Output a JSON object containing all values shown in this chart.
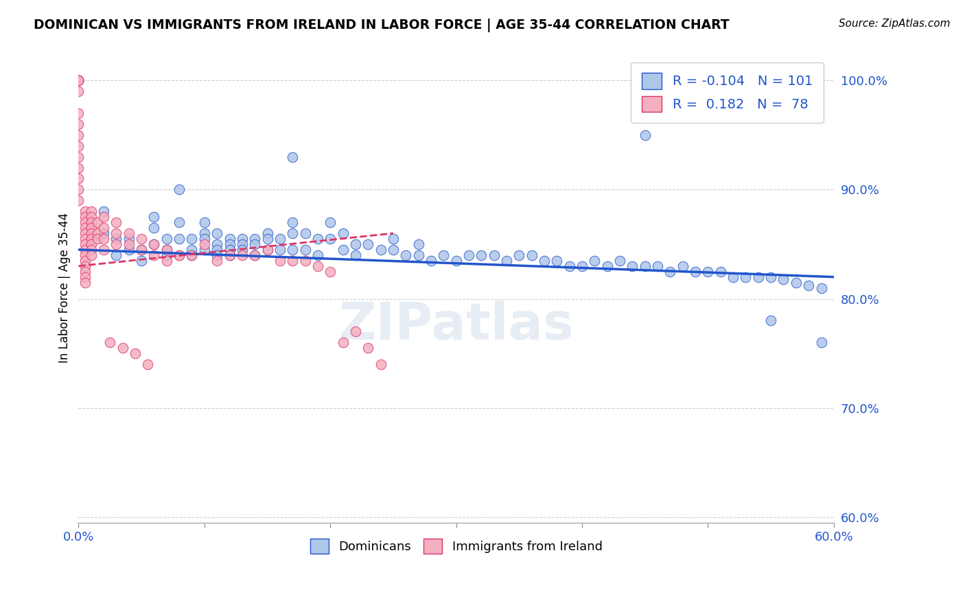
{
  "title": "DOMINICAN VS IMMIGRANTS FROM IRELAND IN LABOR FORCE | AGE 35-44 CORRELATION CHART",
  "source": "Source: ZipAtlas.com",
  "ylabel": "In Labor Force | Age 35-44",
  "xlim": [
    0.0,
    0.6
  ],
  "ylim": [
    0.595,
    1.025
  ],
  "yticks": [
    0.6,
    0.7,
    0.8,
    0.9,
    1.0
  ],
  "ytick_labels": [
    "60.0%",
    "70.0%",
    "80.0%",
    "90.0%",
    "100.0%"
  ],
  "xticks": [
    0.0,
    0.1,
    0.2,
    0.3,
    0.4,
    0.5,
    0.6
  ],
  "xtick_labels": [
    "0.0%",
    "",
    "",
    "",
    "",
    "",
    "60.0%"
  ],
  "blue_R": -0.104,
  "blue_N": 101,
  "pink_R": 0.182,
  "pink_N": 78,
  "blue_color": "#aec6e8",
  "pink_color": "#f4afc0",
  "blue_line_color": "#2255cc",
  "pink_line_color": "#dd3366",
  "watermark": "ZIPatlas",
  "blue_scatter_x": [
    0.01,
    0.01,
    0.02,
    0.02,
    0.03,
    0.03,
    0.04,
    0.04,
    0.05,
    0.05,
    0.06,
    0.06,
    0.06,
    0.07,
    0.07,
    0.07,
    0.08,
    0.08,
    0.08,
    0.09,
    0.09,
    0.09,
    0.1,
    0.1,
    0.1,
    0.1,
    0.11,
    0.11,
    0.11,
    0.11,
    0.12,
    0.12,
    0.12,
    0.12,
    0.13,
    0.13,
    0.13,
    0.14,
    0.14,
    0.14,
    0.15,
    0.15,
    0.15,
    0.16,
    0.16,
    0.17,
    0.17,
    0.17,
    0.18,
    0.18,
    0.19,
    0.19,
    0.2,
    0.2,
    0.21,
    0.21,
    0.22,
    0.22,
    0.23,
    0.24,
    0.25,
    0.25,
    0.26,
    0.27,
    0.27,
    0.28,
    0.29,
    0.3,
    0.31,
    0.32,
    0.33,
    0.34,
    0.35,
    0.36,
    0.37,
    0.38,
    0.39,
    0.4,
    0.41,
    0.42,
    0.43,
    0.44,
    0.45,
    0.46,
    0.47,
    0.48,
    0.49,
    0.5,
    0.51,
    0.52,
    0.53,
    0.54,
    0.55,
    0.56,
    0.57,
    0.58,
    0.59,
    0.45,
    0.17,
    0.55,
    0.59
  ],
  "blue_scatter_y": [
    0.87,
    0.855,
    0.88,
    0.86,
    0.855,
    0.84,
    0.855,
    0.845,
    0.845,
    0.835,
    0.875,
    0.865,
    0.85,
    0.855,
    0.845,
    0.84,
    0.9,
    0.87,
    0.855,
    0.855,
    0.845,
    0.84,
    0.87,
    0.86,
    0.855,
    0.845,
    0.86,
    0.85,
    0.845,
    0.84,
    0.855,
    0.85,
    0.845,
    0.84,
    0.855,
    0.85,
    0.845,
    0.855,
    0.85,
    0.84,
    0.86,
    0.855,
    0.845,
    0.855,
    0.845,
    0.87,
    0.86,
    0.845,
    0.86,
    0.845,
    0.855,
    0.84,
    0.87,
    0.855,
    0.86,
    0.845,
    0.85,
    0.84,
    0.85,
    0.845,
    0.855,
    0.845,
    0.84,
    0.85,
    0.84,
    0.835,
    0.84,
    0.835,
    0.84,
    0.84,
    0.84,
    0.835,
    0.84,
    0.84,
    0.835,
    0.835,
    0.83,
    0.83,
    0.835,
    0.83,
    0.835,
    0.83,
    0.83,
    0.83,
    0.825,
    0.83,
    0.825,
    0.825,
    0.825,
    0.82,
    0.82,
    0.82,
    0.82,
    0.818,
    0.815,
    0.812,
    0.81,
    0.95,
    0.93,
    0.78,
    0.76
  ],
  "pink_scatter_x": [
    0.0,
    0.0,
    0.0,
    0.0,
    0.0,
    0.0,
    0.0,
    0.0,
    0.0,
    0.0,
    0.0,
    0.0,
    0.0,
    0.0,
    0.0,
    0.005,
    0.005,
    0.005,
    0.005,
    0.005,
    0.005,
    0.005,
    0.005,
    0.005,
    0.005,
    0.005,
    0.005,
    0.005,
    0.005,
    0.01,
    0.01,
    0.01,
    0.01,
    0.01,
    0.01,
    0.01,
    0.01,
    0.01,
    0.015,
    0.015,
    0.015,
    0.02,
    0.02,
    0.02,
    0.02,
    0.03,
    0.03,
    0.03,
    0.04,
    0.04,
    0.05,
    0.05,
    0.06,
    0.06,
    0.07,
    0.07,
    0.08,
    0.08,
    0.09,
    0.1,
    0.11,
    0.12,
    0.13,
    0.14,
    0.15,
    0.16,
    0.17,
    0.18,
    0.19,
    0.2,
    0.21,
    0.22,
    0.23,
    0.24,
    0.025,
    0.035,
    0.045,
    0.055
  ],
  "pink_scatter_y": [
    1.0,
    1.0,
    1.0,
    1.0,
    1.0,
    0.99,
    0.97,
    0.96,
    0.95,
    0.94,
    0.93,
    0.92,
    0.91,
    0.9,
    0.89,
    0.88,
    0.875,
    0.87,
    0.865,
    0.86,
    0.855,
    0.85,
    0.845,
    0.84,
    0.835,
    0.83,
    0.825,
    0.82,
    0.815,
    0.88,
    0.875,
    0.87,
    0.865,
    0.86,
    0.855,
    0.85,
    0.845,
    0.84,
    0.87,
    0.86,
    0.855,
    0.875,
    0.865,
    0.855,
    0.845,
    0.87,
    0.86,
    0.85,
    0.86,
    0.85,
    0.855,
    0.845,
    0.85,
    0.84,
    0.845,
    0.835,
    0.84,
    0.84,
    0.84,
    0.85,
    0.835,
    0.84,
    0.84,
    0.84,
    0.845,
    0.835,
    0.835,
    0.835,
    0.83,
    0.825,
    0.76,
    0.77,
    0.755,
    0.74,
    0.76,
    0.755,
    0.75,
    0.74
  ]
}
